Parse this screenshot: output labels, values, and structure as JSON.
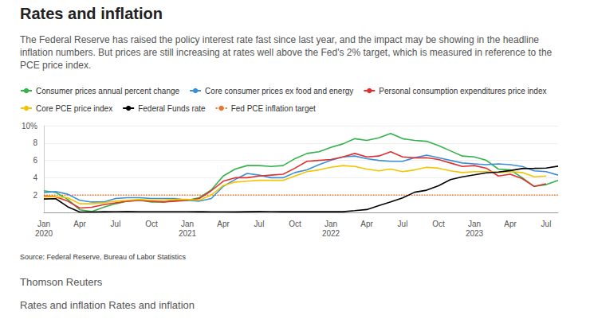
{
  "chart_data": {
    "type": "line",
    "title": "Rates and inflation",
    "subtitle": "The Federal Reserve has raised the policy interest rate fast since last year, and the impact may be showing in the headline inflation numbers. But prices are still increasing at rates well above the Fed's 2% target, which is measured in reference to the PCE price index.",
    "source": "Source: Federal Reserve, Bureau of Labor Statistics",
    "footer": [
      "Thomson Reuters",
      "Rates and inflation Rates and inflation"
    ],
    "categories": [
      "Jan\n2020",
      null,
      null,
      "Apr",
      null,
      null,
      "Jul",
      null,
      null,
      "Oct",
      null,
      null,
      "Jan\n2021",
      null,
      null,
      "Apr",
      null,
      null,
      "Jul",
      null,
      null,
      "Oct",
      null,
      null,
      "Jan\n2022",
      null,
      null,
      "Apr",
      null,
      null,
      "Jul",
      null,
      null,
      "Oct",
      null,
      null,
      "Jan\n2023",
      null,
      null,
      "Apr",
      null,
      null,
      "Jul",
      null
    ],
    "ylim": [
      0,
      10
    ],
    "yticks": [
      2,
      4,
      6,
      8,
      {
        "value": 10,
        "label": "10%"
      }
    ],
    "grid": true,
    "legend": "top",
    "series": [
      {
        "name": "Consumer prices annual percent change",
        "color": "#33b24a",
        "line_style": "solid",
        "values": [
          2.5,
          2.3,
          1.5,
          0.3,
          0.1,
          0.6,
          1.0,
          1.3,
          1.4,
          1.2,
          1.2,
          1.4,
          1.4,
          1.7,
          2.6,
          4.2,
          5.0,
          5.4,
          5.4,
          5.3,
          5.4,
          6.2,
          6.8,
          7.0,
          7.5,
          7.9,
          8.5,
          8.3,
          8.6,
          9.1,
          8.5,
          8.3,
          8.2,
          7.7,
          7.1,
          6.5,
          6.4,
          6.0,
          5.0,
          4.9,
          4.0,
          3.0,
          3.2,
          3.7
        ]
      },
      {
        "name": "Core consumer prices ex food and energy",
        "color": "#3a8fd8",
        "line_style": "solid",
        "values": [
          2.3,
          2.4,
          2.1,
          1.4,
          1.2,
          1.2,
          1.6,
          1.7,
          1.7,
          1.6,
          1.6,
          1.6,
          1.4,
          1.3,
          1.6,
          3.0,
          3.8,
          4.5,
          4.3,
          4.0,
          4.0,
          4.6,
          4.9,
          5.5,
          6.0,
          6.4,
          6.5,
          6.2,
          6.0,
          5.9,
          5.9,
          6.3,
          6.6,
          6.3,
          6.0,
          5.7,
          5.6,
          5.5,
          5.6,
          5.5,
          5.3,
          4.8,
          4.7,
          4.3
        ]
      },
      {
        "name": "Personal consumption expenditures price index",
        "color": "#e0302f",
        "line_style": "solid",
        "values": [
          1.9,
          1.8,
          1.3,
          0.5,
          0.6,
          0.9,
          1.1,
          1.3,
          1.4,
          1.3,
          1.2,
          1.3,
          1.4,
          1.6,
          2.5,
          3.6,
          4.0,
          4.0,
          4.2,
          4.3,
          4.4,
          5.1,
          5.9,
          6.0,
          6.1,
          6.4,
          6.8,
          6.4,
          6.5,
          7.0,
          6.4,
          6.3,
          6.3,
          6.1,
          5.7,
          5.3,
          5.4,
          5.1,
          4.2,
          4.4,
          3.9,
          3.0,
          3.3,
          null
        ]
      },
      {
        "name": "Core PCE price index",
        "color": "#f2c500",
        "line_style": "solid",
        "values": [
          1.8,
          1.8,
          1.7,
          1.0,
          1.0,
          1.1,
          1.3,
          1.4,
          1.5,
          1.4,
          1.4,
          1.5,
          1.5,
          1.4,
          2.0,
          3.1,
          3.5,
          3.6,
          3.7,
          3.7,
          3.7,
          4.2,
          4.7,
          4.9,
          5.2,
          5.4,
          5.3,
          5.0,
          4.8,
          5.0,
          4.7,
          4.9,
          5.2,
          5.1,
          4.8,
          4.6,
          4.7,
          4.7,
          4.6,
          4.7,
          4.6,
          4.1,
          4.2,
          null
        ]
      },
      {
        "name": "Federal Funds rate",
        "color": "#000000",
        "line_style": "solid",
        "values": [
          1.55,
          1.58,
          0.65,
          0.05,
          0.05,
          0.08,
          0.09,
          0.1,
          0.09,
          0.09,
          0.09,
          0.09,
          0.09,
          0.08,
          0.07,
          0.07,
          0.06,
          0.08,
          0.1,
          0.09,
          0.08,
          0.08,
          0.08,
          0.08,
          0.08,
          0.08,
          0.2,
          0.33,
          0.77,
          1.21,
          1.68,
          2.33,
          2.56,
          3.08,
          3.78,
          4.1,
          4.33,
          4.57,
          4.65,
          4.83,
          5.06,
          5.08,
          5.12,
          5.33
        ]
      },
      {
        "name": "Fed PCE inflation target",
        "color": "#e8772e",
        "line_style": "dotted",
        "values": [
          2,
          2,
          2,
          2,
          2,
          2,
          2,
          2,
          2,
          2,
          2,
          2,
          2,
          2,
          2,
          2,
          2,
          2,
          2,
          2,
          2,
          2,
          2,
          2,
          2,
          2,
          2,
          2,
          2,
          2,
          2,
          2,
          2,
          2,
          2,
          2,
          2,
          2,
          2,
          2,
          2,
          2,
          2,
          2
        ]
      }
    ]
  }
}
